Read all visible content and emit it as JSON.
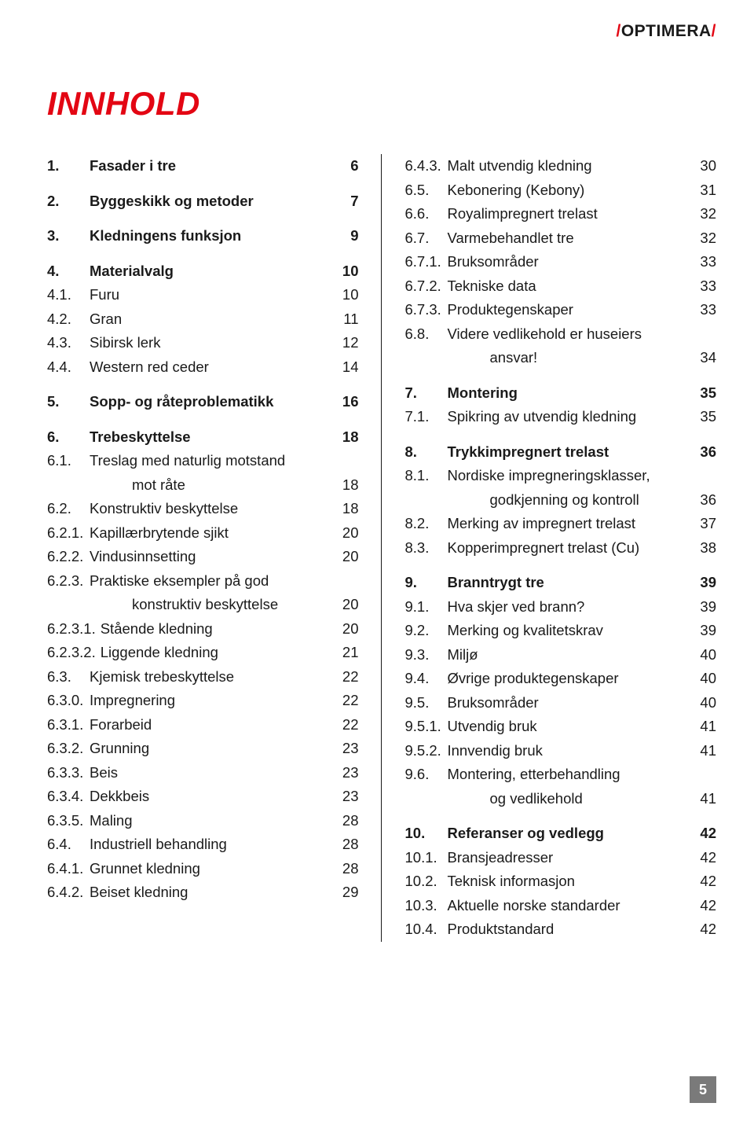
{
  "brand": {
    "slash": "/",
    "name": "OPTIMERA"
  },
  "title": "INNHOLD",
  "page_number": "5",
  "left_col": [
    {
      "type": "row",
      "num": "1.",
      "label": "Fasader i tre",
      "page": "6",
      "bold": true
    },
    {
      "type": "gap"
    },
    {
      "type": "row",
      "num": "2.",
      "label": "Byggeskikk og metoder",
      "page": "7",
      "bold": true
    },
    {
      "type": "gap"
    },
    {
      "type": "row",
      "num": "3.",
      "label": "Kledningens funksjon",
      "page": "9",
      "bold": true
    },
    {
      "type": "gap"
    },
    {
      "type": "row",
      "num": "4.",
      "label": "Materialvalg",
      "page": "10",
      "bold": true
    },
    {
      "type": "row",
      "num": "4.1.",
      "label": "Furu",
      "page": "10",
      "indent": 1
    },
    {
      "type": "row",
      "num": "4.2.",
      "label": "Gran",
      "page": "11",
      "indent": 1
    },
    {
      "type": "row",
      "num": "4.3.",
      "label": "Sibirsk lerk",
      "page": "12",
      "indent": 1
    },
    {
      "type": "row",
      "num": "4.4.",
      "label": "Western red ceder",
      "page": "14",
      "indent": 1
    },
    {
      "type": "gap"
    },
    {
      "type": "row",
      "num": "5.",
      "label": "Sopp- og råteproblematikk",
      "page": "16",
      "bold": true
    },
    {
      "type": "gap"
    },
    {
      "type": "row",
      "num": "6.",
      "label": "Trebeskyttelse",
      "page": "18",
      "bold": true
    },
    {
      "type": "row",
      "num": "6.1.",
      "label": "Treslag med naturlig motstand",
      "page": "",
      "indent": 1
    },
    {
      "type": "row",
      "num": "",
      "label": "mot råte",
      "page": "18",
      "indent": 1,
      "sub": true
    },
    {
      "type": "row",
      "num": "6.2.",
      "label": "Konstruktiv beskyttelse",
      "page": "18",
      "indent": 1
    },
    {
      "type": "row",
      "num": "6.2.1.",
      "label": "Kapillærbrytende sjikt",
      "page": "20",
      "indent": 2
    },
    {
      "type": "row",
      "num": "6.2.2.",
      "label": "Vindusinnsetting",
      "page": "20",
      "indent": 2
    },
    {
      "type": "row",
      "num": "6.2.3.",
      "label": "Praktiske eksempler på god",
      "page": "",
      "indent": 2
    },
    {
      "type": "row",
      "num": "",
      "label": "konstruktiv beskyttelse",
      "page": "20",
      "indent": 2,
      "sub": true
    },
    {
      "type": "row",
      "num": "6.2.3.1.",
      "label": "Stående kledning",
      "page": "20",
      "indent": 2
    },
    {
      "type": "row",
      "num": "6.2.3.2.",
      "label": "Liggende kledning",
      "page": "21",
      "indent": 2
    },
    {
      "type": "row",
      "num": "6.3.",
      "label": "Kjemisk trebeskyttelse",
      "page": "22",
      "indent": 1
    },
    {
      "type": "row",
      "num": "6.3.0.",
      "label": "Impregnering",
      "page": "22",
      "indent": 2
    },
    {
      "type": "row",
      "num": "6.3.1.",
      "label": "Forarbeid",
      "page": "22",
      "indent": 2
    },
    {
      "type": "row",
      "num": "6.3.2.",
      "label": "Grunning",
      "page": "23",
      "indent": 2
    },
    {
      "type": "row",
      "num": "6.3.3.",
      "label": "Beis",
      "page": "23",
      "indent": 2
    },
    {
      "type": "row",
      "num": "6.3.4.",
      "label": "Dekkbeis",
      "page": "23",
      "indent": 2
    },
    {
      "type": "row",
      "num": "6.3.5.",
      "label": "Maling",
      "page": "28",
      "indent": 2
    },
    {
      "type": "row",
      "num": "6.4.",
      "label": "Industriell behandling",
      "page": "28",
      "indent": 1
    },
    {
      "type": "row",
      "num": "6.4.1.",
      "label": "Grunnet kledning",
      "page": "28",
      "indent": 2
    },
    {
      "type": "row",
      "num": "6.4.2.",
      "label": "Beiset kledning",
      "page": "29",
      "indent": 2
    }
  ],
  "right_col": [
    {
      "type": "row",
      "num": "6.4.3.",
      "label": "Malt utvendig kledning",
      "page": "30",
      "indent": 2
    },
    {
      "type": "row",
      "num": "6.5.",
      "label": "Kebonering (Kebony)",
      "page": "31",
      "indent": 1
    },
    {
      "type": "row",
      "num": "6.6.",
      "label": "Royalimpregnert trelast",
      "page": "32",
      "indent": 1
    },
    {
      "type": "row",
      "num": "6.7.",
      "label": "Varmebehandlet tre",
      "page": "32",
      "indent": 1
    },
    {
      "type": "row",
      "num": "6.7.1.",
      "label": "Bruksområder",
      "page": "33",
      "indent": 2
    },
    {
      "type": "row",
      "num": "6.7.2.",
      "label": "Tekniske data",
      "page": "33",
      "indent": 2
    },
    {
      "type": "row",
      "num": "6.7.3.",
      "label": "Produktegenskaper",
      "page": "33",
      "indent": 2
    },
    {
      "type": "row",
      "num": "6.8.",
      "label": "Videre vedlikehold er huseiers",
      "page": "",
      "indent": 1
    },
    {
      "type": "row",
      "num": "",
      "label": "ansvar!",
      "page": "34",
      "indent": 1,
      "sub": true
    },
    {
      "type": "gap"
    },
    {
      "type": "row",
      "num": "7.",
      "label": "Montering",
      "page": "35",
      "bold": true
    },
    {
      "type": "row",
      "num": "7.1.",
      "label": "Spikring av utvendig kledning",
      "page": "35",
      "indent": 1
    },
    {
      "type": "gap"
    },
    {
      "type": "row",
      "num": "8.",
      "label": "Trykkimpregnert trelast",
      "page": "36",
      "bold": true
    },
    {
      "type": "row",
      "num": "8.1.",
      "label": "Nordiske impregneringsklasser,",
      "page": "",
      "indent": 1
    },
    {
      "type": "row",
      "num": "",
      "label": "godkjenning og kontroll",
      "page": "36",
      "indent": 1,
      "sub": true
    },
    {
      "type": "row",
      "num": "8.2.",
      "label": "Merking av impregnert trelast",
      "page": "37",
      "indent": 1
    },
    {
      "type": "row",
      "num": "8.3.",
      "label": "Kopperimpregnert trelast (Cu)",
      "page": "38",
      "indent": 1
    },
    {
      "type": "gap"
    },
    {
      "type": "row",
      "num": "9.",
      "label": "Branntrygt tre",
      "page": "39",
      "bold": true
    },
    {
      "type": "row",
      "num": "9.1.",
      "label": "Hva skjer ved brann?",
      "page": "39",
      "indent": 1
    },
    {
      "type": "row",
      "num": "9.2.",
      "label": "Merking og kvalitetskrav",
      "page": "39",
      "indent": 1
    },
    {
      "type": "row",
      "num": "9.3.",
      "label": "Miljø",
      "page": "40",
      "indent": 1
    },
    {
      "type": "row",
      "num": "9.4.",
      "label": "Øvrige produktegenskaper",
      "page": "40",
      "indent": 1
    },
    {
      "type": "row",
      "num": "9.5.",
      "label": "Bruksområder",
      "page": "40",
      "indent": 1
    },
    {
      "type": "row",
      "num": "9.5.1.",
      "label": "Utvendig bruk",
      "page": "41",
      "indent": 2
    },
    {
      "type": "row",
      "num": "9.5.2.",
      "label": "Innvendig bruk",
      "page": "41",
      "indent": 2
    },
    {
      "type": "row",
      "num": "9.6.",
      "label": "Montering, etterbehandling",
      "page": "",
      "indent": 1
    },
    {
      "type": "row",
      "num": "",
      "label": "og vedlikehold",
      "page": "41",
      "indent": 1,
      "sub": true
    },
    {
      "type": "gap"
    },
    {
      "type": "row",
      "num": "10.",
      "label": "Referanser og vedlegg",
      "page": "42",
      "bold": true
    },
    {
      "type": "row",
      "num": "10.1.",
      "label": "Bransjeadresser",
      "page": "42",
      "indent": 1
    },
    {
      "type": "row",
      "num": "10.2.",
      "label": "Teknisk informasjon",
      "page": "42",
      "indent": 1
    },
    {
      "type": "row",
      "num": "10.3.",
      "label": "Aktuelle norske standarder",
      "page": "42",
      "indent": 1
    },
    {
      "type": "row",
      "num": "10.4.",
      "label": "Produktstandard",
      "page": "42",
      "indent": 1
    }
  ]
}
